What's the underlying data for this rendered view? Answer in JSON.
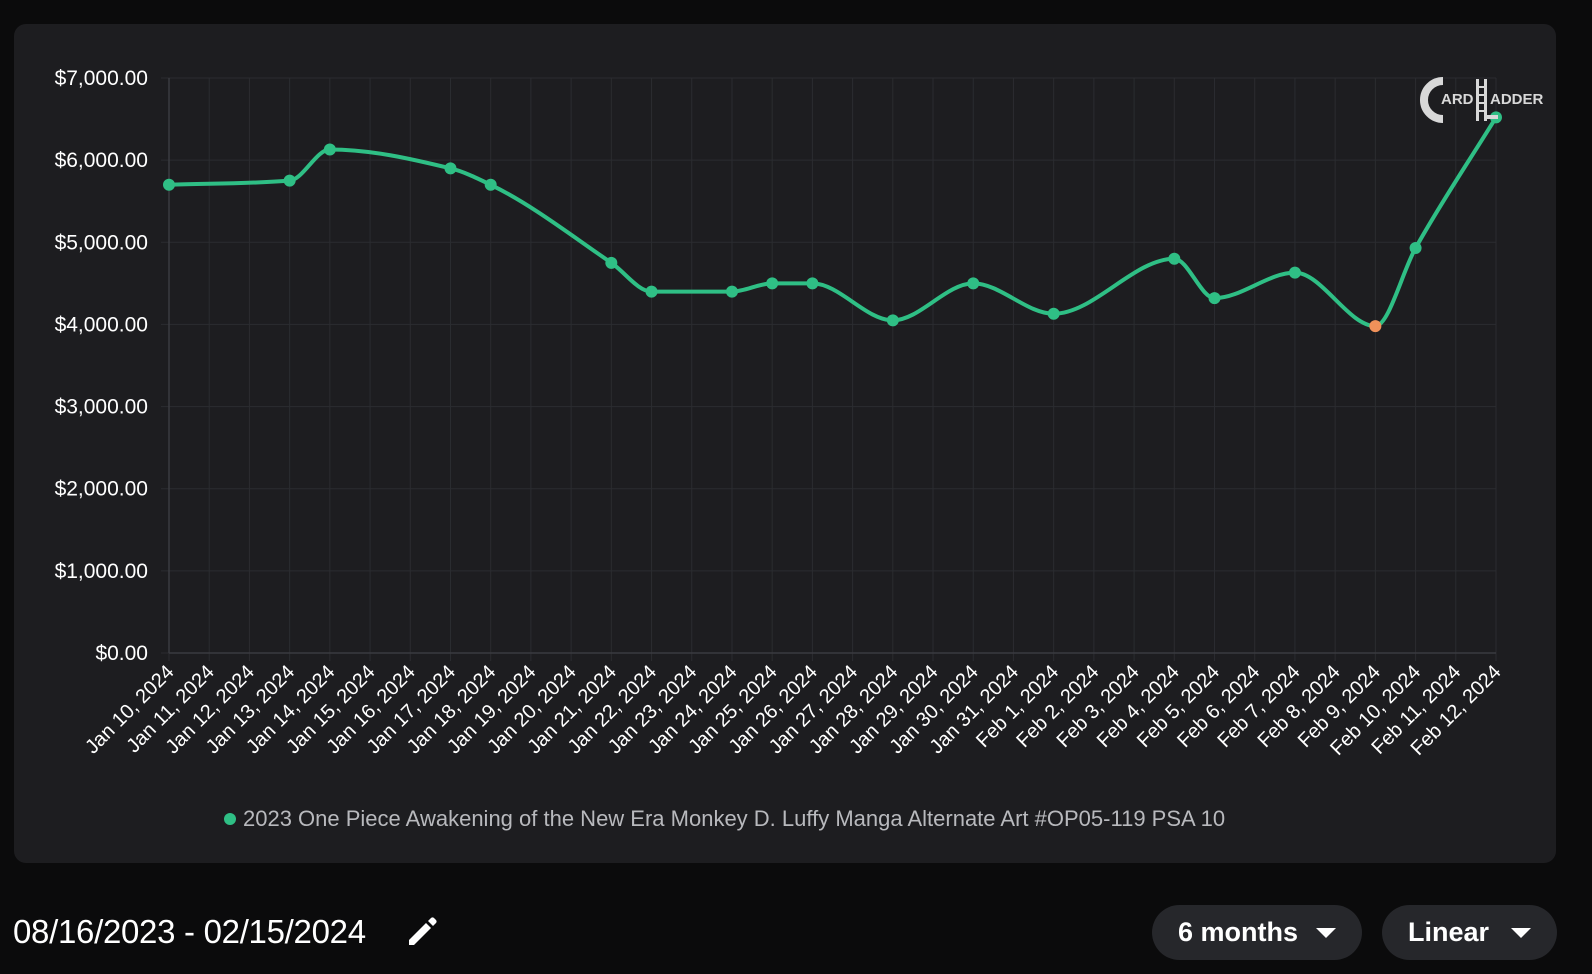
{
  "chart_data": {
    "type": "line",
    "title": "",
    "xlabel": "",
    "ylabel": "",
    "ylim": [
      0,
      7000
    ],
    "y_ticks": [
      "$0.00",
      "$1,000.00",
      "$2,000.00",
      "$3,000.00",
      "$4,000.00",
      "$5,000.00",
      "$6,000.00",
      "$7,000.00"
    ],
    "y_tick_values": [
      0,
      1000,
      2000,
      3000,
      4000,
      5000,
      6000,
      7000
    ],
    "categories": [
      "Jan 10, 2024",
      "Jan 11, 2024",
      "Jan 12, 2024",
      "Jan 13, 2024",
      "Jan 14, 2024",
      "Jan 15, 2024",
      "Jan 16, 2024",
      "Jan 17, 2024",
      "Jan 18, 2024",
      "Jan 19, 2024",
      "Jan 20, 2024",
      "Jan 21, 2024",
      "Jan 22, 2024",
      "Jan 23, 2024",
      "Jan 24, 2024",
      "Jan 25, 2024",
      "Jan 26, 2024",
      "Jan 27, 2024",
      "Jan 28, 2024",
      "Jan 29, 2024",
      "Jan 30, 2024",
      "Jan 31, 2024",
      "Feb 1, 2024",
      "Feb 2, 2024",
      "Feb 3, 2024",
      "Feb 4, 2024",
      "Feb 5, 2024",
      "Feb 6, 2024",
      "Feb 7, 2024",
      "Feb 8, 2024",
      "Feb 9, 2024",
      "Feb 10, 2024",
      "Feb 11, 2024",
      "Feb 12, 2024"
    ],
    "grid": true,
    "legend": "bottom",
    "series": [
      {
        "name": "2023 One Piece Awakening of the New Era Monkey D. Luffy Manga Alternate Art #OP05-119 PSA 10",
        "color": "#2fbf85",
        "highlight_color": "#f0915a",
        "points": [
          {
            "x": "Jan 10, 2024",
            "y": 5700
          },
          {
            "x": "Jan 13, 2024",
            "y": 5750
          },
          {
            "x": "Jan 14, 2024",
            "y": 6130
          },
          {
            "x": "Jan 17, 2024",
            "y": 5900
          },
          {
            "x": "Jan 18, 2024",
            "y": 5700
          },
          {
            "x": "Jan 21, 2024",
            "y": 4750
          },
          {
            "x": "Jan 22, 2024",
            "y": 4400
          },
          {
            "x": "Jan 24, 2024",
            "y": 4400
          },
          {
            "x": "Jan 25, 2024",
            "y": 4500
          },
          {
            "x": "Jan 26, 2024",
            "y": 4500
          },
          {
            "x": "Jan 28, 2024",
            "y": 4050
          },
          {
            "x": "Jan 30, 2024",
            "y": 4500
          },
          {
            "x": "Feb 1, 2024",
            "y": 4130
          },
          {
            "x": "Feb 4, 2024",
            "y": 4800
          },
          {
            "x": "Feb 5, 2024",
            "y": 4320
          },
          {
            "x": "Feb 7, 2024",
            "y": 4630
          },
          {
            "x": "Feb 9, 2024",
            "y": 3980,
            "highlight": true
          },
          {
            "x": "Feb 10, 2024",
            "y": 4930
          },
          {
            "x": "Feb 12, 2024",
            "y": 6520
          }
        ]
      }
    ]
  },
  "logo": {
    "text_left": "ARD",
    "text_right": "ADDER"
  },
  "controls": {
    "date_range": "08/16/2023 - 02/15/2024",
    "range_dropdown": "6 months",
    "scale_dropdown": "Linear"
  },
  "icons": {
    "edit": "pencil-icon",
    "caret": "caret-down-icon"
  }
}
